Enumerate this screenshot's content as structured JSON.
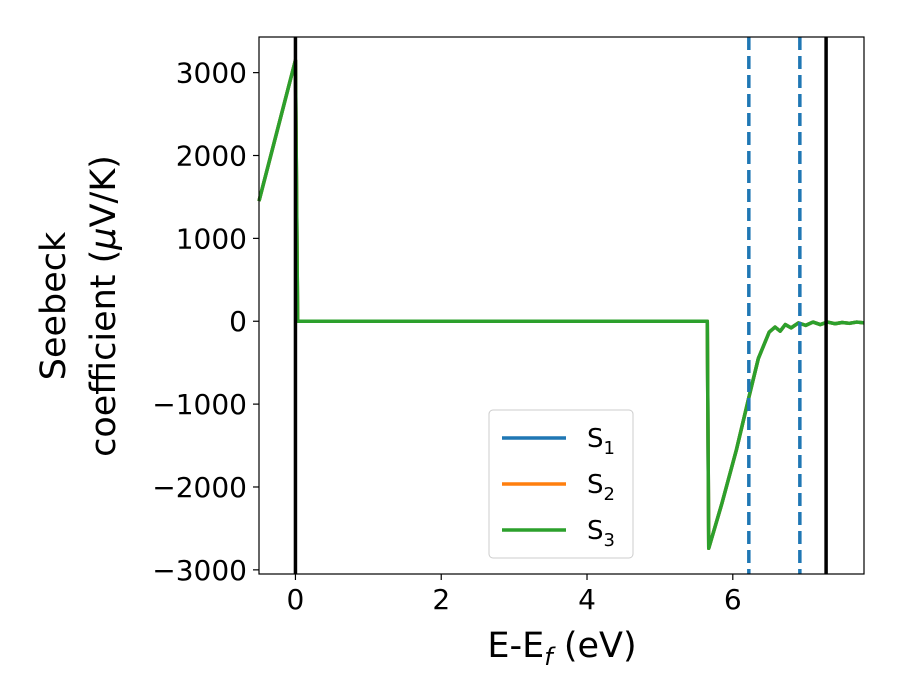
{
  "chart_data": {
    "type": "line",
    "xlabel": "E-E",
    "xlabel_sub": "f",
    "xlabel_unit": " (eV)",
    "ylabel_line1": "Seebeck",
    "ylabel_line2": "coefficient  (",
    "ylabel_mu": "μ",
    "ylabel_unit": "V/K)",
    "xlim": [
      -0.5,
      7.8
    ],
    "ylim": [
      -3050,
      3430
    ],
    "xticks": [
      0,
      2,
      4,
      6
    ],
    "xtick_labels": [
      "0",
      "2",
      "4",
      "6"
    ],
    "yticks": [
      3000,
      2000,
      1000,
      0,
      -1000,
      -2000,
      -3000
    ],
    "ytick_labels": [
      "3000",
      "2000",
      "1000",
      "0",
      "−1000",
      "−2000",
      "−3000"
    ],
    "grid": false,
    "legend_position": "lower-center",
    "vertical_lines": [
      {
        "x": 0.0,
        "style": "solid",
        "color": "#000000"
      },
      {
        "x": 6.22,
        "style": "dashed",
        "color": "#1f77b4"
      },
      {
        "x": 6.92,
        "style": "dashed",
        "color": "#1f77b4"
      },
      {
        "x": 7.28,
        "style": "solid",
        "color": "#000000"
      }
    ],
    "series": [
      {
        "name": "S",
        "sub": "1",
        "color": "#1f77b4",
        "x": [
          -0.5,
          0.0,
          0.03,
          5.65,
          5.67,
          5.85,
          6.05,
          6.22,
          6.35,
          6.5,
          6.58,
          6.65,
          6.72,
          6.8,
          6.9,
          7.0,
          7.1,
          7.2,
          7.3,
          7.4,
          7.5,
          7.6,
          7.7,
          7.8
        ],
        "y": [
          1450,
          3150,
          0,
          0,
          -2740,
          -2200,
          -1550,
          -920,
          -450,
          -130,
          -70,
          -120,
          -40,
          -80,
          -20,
          -50,
          -10,
          -40,
          -10,
          -30,
          -15,
          -25,
          -10,
          -20
        ]
      },
      {
        "name": "S",
        "sub": "2",
        "color": "#ff7f0e",
        "x": [
          -0.5,
          0.0,
          0.03,
          5.65,
          5.67,
          5.85,
          6.05,
          6.22,
          6.35,
          6.5,
          6.58,
          6.65,
          6.72,
          6.8,
          6.9,
          7.0,
          7.1,
          7.2,
          7.3,
          7.4,
          7.5,
          7.6,
          7.7,
          7.8
        ],
        "y": [
          1450,
          3150,
          0,
          0,
          -2740,
          -2200,
          -1550,
          -920,
          -450,
          -130,
          -70,
          -120,
          -40,
          -80,
          -20,
          -50,
          -10,
          -40,
          -10,
          -30,
          -15,
          -25,
          -10,
          -20
        ]
      },
      {
        "name": "S",
        "sub": "3",
        "color": "#2ca02c",
        "x": [
          -0.5,
          0.0,
          0.03,
          5.65,
          5.67,
          5.85,
          6.05,
          6.22,
          6.35,
          6.5,
          6.58,
          6.65,
          6.72,
          6.8,
          6.9,
          7.0,
          7.1,
          7.2,
          7.3,
          7.4,
          7.5,
          7.6,
          7.7,
          7.8
        ],
        "y": [
          1450,
          3150,
          0,
          0,
          -2740,
          -2200,
          -1550,
          -920,
          -450,
          -130,
          -70,
          -120,
          -40,
          -80,
          -20,
          -50,
          -10,
          -40,
          -10,
          -30,
          -15,
          -25,
          -10,
          -20
        ]
      }
    ]
  }
}
